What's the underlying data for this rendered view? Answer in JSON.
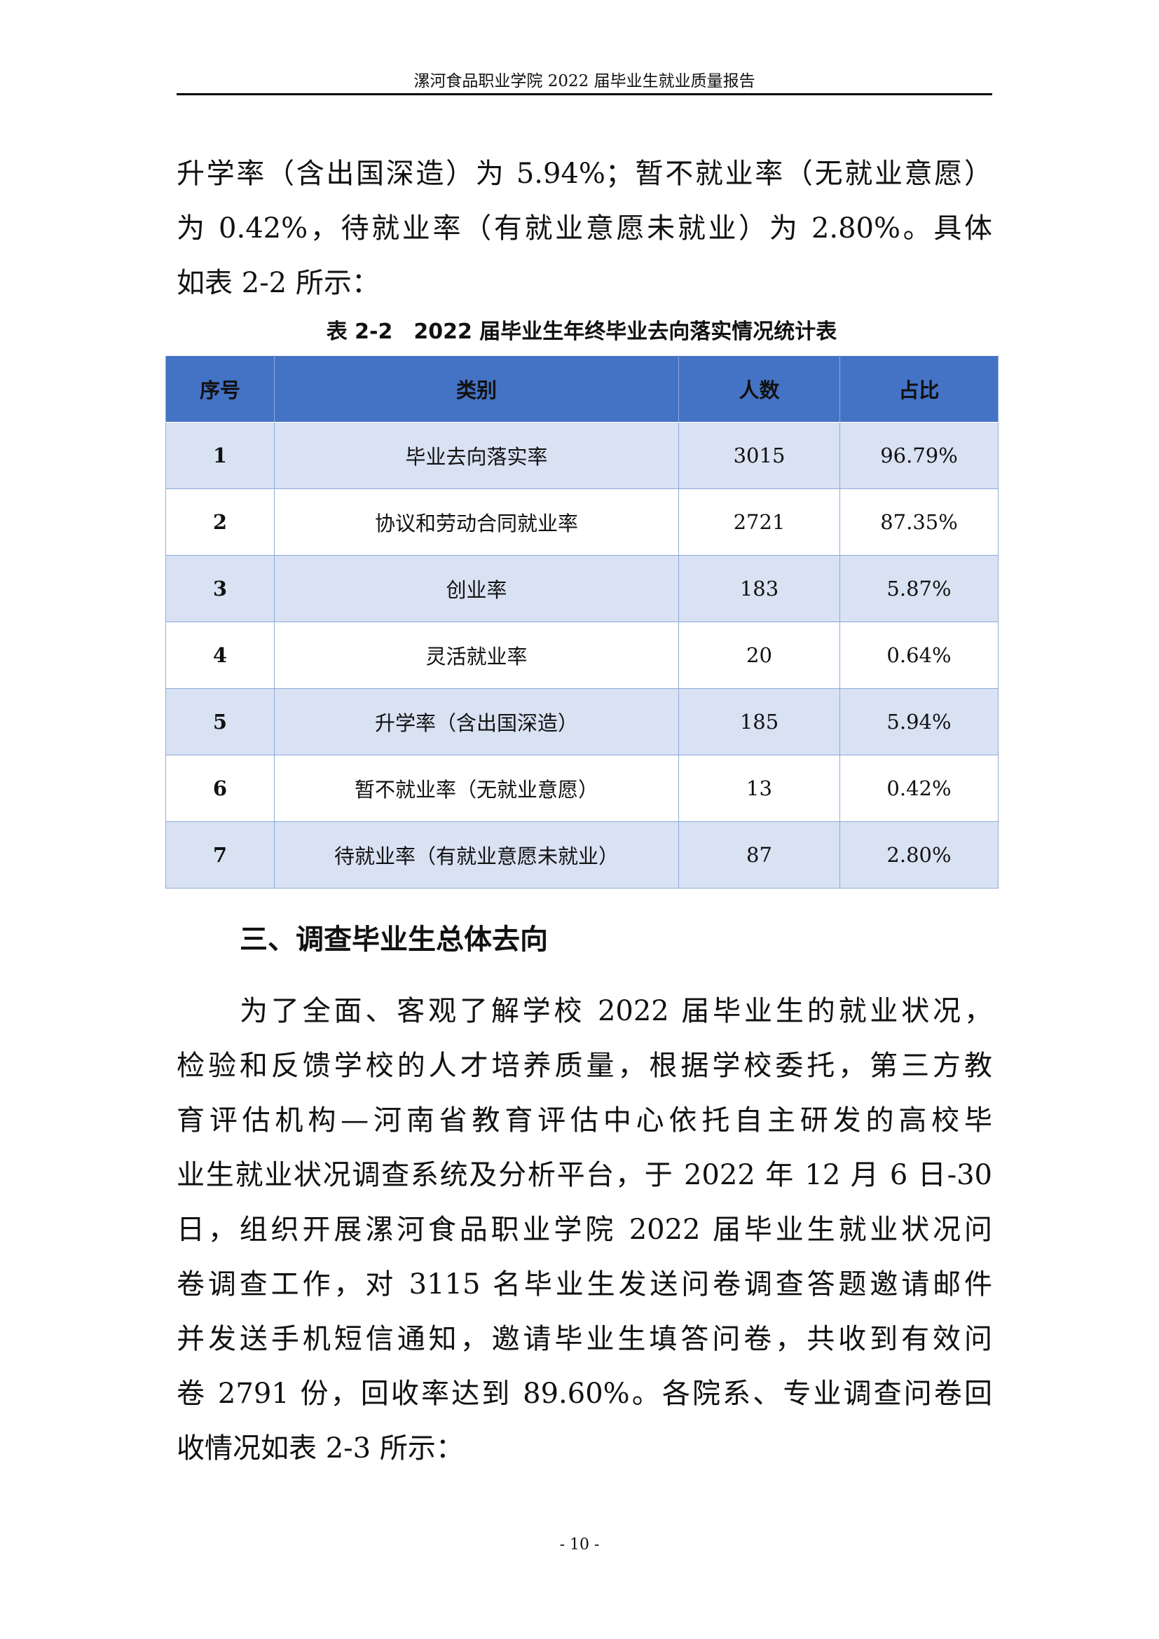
{
  "header": {
    "title": "漯河食品职业学院 2022 届毕业生就业质量报告"
  },
  "intro_lines": [
    "升学率（含出国深造）为 5.94%；暂不就业率（无就业意愿）",
    "为 0.42%，待就业率（有就业意愿未就业）为 2.80%。具体",
    "如表 2-2 所示："
  ],
  "table": {
    "caption": "表 2-2　2022 届毕业生年终毕业去向落实情况统计表",
    "columns": [
      "序号",
      "类别",
      "人数",
      "占比"
    ],
    "rows": [
      [
        "1",
        "毕业去向落实率",
        "3015",
        "96.79%"
      ],
      [
        "2",
        "协议和劳动合同就业率",
        "2721",
        "87.35%"
      ],
      [
        "3",
        "创业率",
        "183",
        "5.87%"
      ],
      [
        "4",
        "灵活就业率",
        "20",
        "0.64%"
      ],
      [
        "5",
        "升学率（含出国深造）",
        "185",
        "5.94%"
      ],
      [
        "6",
        "暂不就业率（无就业意愿）",
        "13",
        "0.42%"
      ],
      [
        "7",
        "待就业率（有就业意愿未就业）",
        "87",
        "2.80%"
      ]
    ]
  },
  "section": {
    "heading": "三、调查毕业生总体去向",
    "lines": [
      "为了全面、客观了解学校 2022 届毕业生的就业状况，",
      "检验和反馈学校的人才培养质量，根据学校委托，第三方教",
      "育评估机构—河南省教育评估中心依托自主研发的高校毕",
      "业生就业状况调查系统及分析平台，于 2022 年 12 月 6 日-30",
      "日，组织开展漯河食品职业学院 2022 届毕业生就业状况问",
      "卷调查工作，对 3115 名毕业生发送问卷调查答题邀请邮件",
      "并发送手机短信通知，邀请毕业生填答问卷，共收到有效问",
      "卷 2791 份，回收率达到 89.60%。各院系、专业调查问卷回",
      "收情况如表 2-3 所示："
    ]
  },
  "footer": {
    "page": "- 10 -"
  },
  "colors": {
    "header_row": "#4472c4",
    "band_row": "#d9e2f3"
  }
}
